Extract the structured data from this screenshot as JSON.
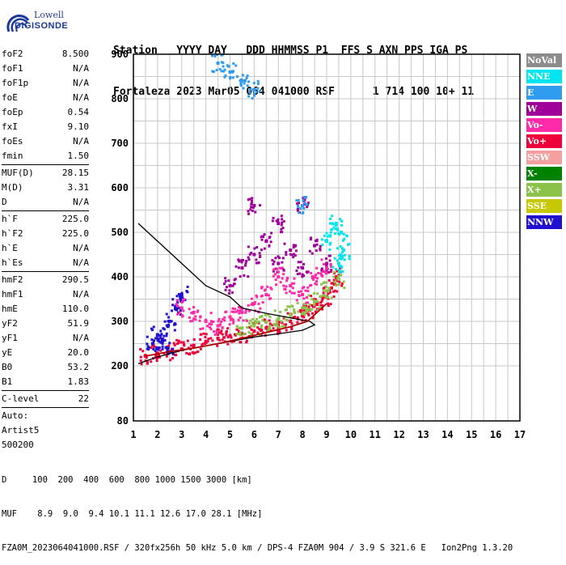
{
  "logo": {
    "line1": "Lowell",
    "line2": "DIGISONDE"
  },
  "header": {
    "line1": "Station   YYYY DAY   DDD HHMMSS P1  FFS S AXN PPS IGA PS",
    "line2": "Fortaleza 2023 Mar05 064 041000 RSF      1 714 100 10+ 11"
  },
  "params": {
    "group1": [
      [
        "foF2",
        "8.500"
      ],
      [
        "foF1",
        "N/A"
      ],
      [
        "foF1p",
        "N/A"
      ],
      [
        "foE",
        "N/A"
      ],
      [
        "foEp",
        "0.54"
      ],
      [
        "fxI",
        "9.10"
      ],
      [
        "foEs",
        "N/A"
      ],
      [
        "fmin",
        "1.50"
      ]
    ],
    "group2": [
      [
        "MUF(D)",
        "28.15"
      ],
      [
        "M(D)",
        "3.31"
      ],
      [
        "D",
        "N/A"
      ]
    ],
    "group3": [
      [
        "h`F",
        "225.0"
      ],
      [
        "h`F2",
        "225.0"
      ],
      [
        "h`E",
        "N/A"
      ],
      [
        "h`Es",
        "N/A"
      ]
    ],
    "group4": [
      [
        "hmF2",
        "290.5"
      ],
      [
        "hmF1",
        "N/A"
      ],
      [
        "hmE",
        "110.0"
      ],
      [
        "yF2",
        "51.9"
      ],
      [
        "yF1",
        "N/A"
      ],
      [
        "yE",
        "20.0"
      ],
      [
        "B0",
        "53.2"
      ],
      [
        "B1",
        "1.83"
      ]
    ],
    "group5": [
      [
        "C-level",
        "22"
      ]
    ],
    "auto": [
      "Auto:",
      "Artist5",
      "500200"
    ]
  },
  "legend": [
    {
      "label": "NoVal",
      "color": "#8c8c8c"
    },
    {
      "label": "NNE",
      "color": "#00e5ee"
    },
    {
      "label": "E",
      "color": "#2f9cf0"
    },
    {
      "label": "W",
      "color": "#a0009a"
    },
    {
      "label": "Vo-",
      "color": "#ff2aa8"
    },
    {
      "label": "Vo+",
      "color": "#f0003a"
    },
    {
      "label": "SSW",
      "color": "#f5a0a0"
    },
    {
      "label": "X-",
      "color": "#008200"
    },
    {
      "label": "X+",
      "color": "#8bc34a"
    },
    {
      "label": "SSE",
      "color": "#c8c800"
    },
    {
      "label": "NNW",
      "color": "#2010d0"
    }
  ],
  "footer": {
    "line1": "D     100  200  400  600  800 1000 1500 3000 [km]",
    "line2": "MUF    8.9  9.0  9.4 10.1 11.1 12.6 17.0 28.1 [MHz]",
    "line3": "FZA0M_2023064041000.RSF / 320fx256h 50 kHz 5.0 km / DPS-4 FZA0M 904 / 3.9 S 321.6 E   Ion2Png 1.3.20"
  },
  "chart_data": {
    "type": "scatter",
    "xlim": [
      1,
      17
    ],
    "ylim": [
      80,
      900
    ],
    "x_ticks": [
      1,
      2,
      3,
      4,
      5,
      6,
      7,
      8,
      9,
      10,
      11,
      12,
      13,
      14,
      15,
      16,
      17
    ],
    "y_ticks": [
      80,
      200,
      300,
      400,
      500,
      600,
      700,
      800,
      900
    ],
    "grid": true,
    "series": [
      {
        "name": "Vo+ trace",
        "color": "#f0003a",
        "points": [
          [
            1.5,
            222
          ],
          [
            2,
            228
          ],
          [
            2.5,
            232
          ],
          [
            3,
            238
          ],
          [
            3.5,
            246
          ],
          [
            4,
            255
          ],
          [
            4.5,
            262
          ],
          [
            5,
            268
          ],
          [
            5.5,
            272
          ],
          [
            6,
            278
          ],
          [
            6.5,
            285
          ],
          [
            7,
            292
          ],
          [
            7.5,
            300
          ],
          [
            8,
            312
          ],
          [
            8.3,
            325
          ],
          [
            8.6,
            338
          ],
          [
            9,
            355
          ],
          [
            9.2,
            375
          ],
          [
            9.4,
            400
          ]
        ]
      },
      {
        "name": "X+ trace",
        "color": "#8bc34a",
        "points": [
          [
            5.5,
            285
          ],
          [
            6,
            290
          ],
          [
            6.5,
            298
          ],
          [
            7,
            306
          ],
          [
            7.5,
            316
          ],
          [
            8,
            330
          ],
          [
            8.5,
            345
          ],
          [
            9,
            368
          ],
          [
            9.5,
            395
          ]
        ]
      },
      {
        "name": "W scatter",
        "color": "#a0009a",
        "points": [
          [
            5,
            380
          ],
          [
            5.5,
            420
          ],
          [
            6,
            450
          ],
          [
            6.5,
            480
          ],
          [
            7,
            430
          ],
          [
            7.5,
            460
          ],
          [
            8,
            420
          ],
          [
            8.5,
            470
          ],
          [
            9,
            430
          ],
          [
            7,
            520
          ],
          [
            8,
            560
          ],
          [
            6,
            560
          ]
        ]
      },
      {
        "name": "NNW scatter",
        "color": "#2010d0",
        "points": [
          [
            1.8,
            250
          ],
          [
            2,
            270
          ],
          [
            2.2,
            260
          ],
          [
            2.5,
            300
          ],
          [
            2.8,
            330
          ],
          [
            3,
            360
          ],
          [
            2.4,
            240
          ]
        ]
      },
      {
        "name": "Vo- scatter",
        "color": "#ff2aa8",
        "points": [
          [
            3,
            330
          ],
          [
            3.5,
            320
          ],
          [
            4,
            300
          ],
          [
            4.5,
            290
          ],
          [
            5,
            310
          ],
          [
            5.5,
            320
          ],
          [
            6,
            340
          ],
          [
            6.5,
            360
          ],
          [
            7,
            400
          ],
          [
            7.5,
            380
          ],
          [
            8,
            360
          ],
          [
            8.5,
            400
          ],
          [
            9,
            420
          ]
        ]
      },
      {
        "name": "NNE scatter",
        "color": "#00e5ee",
        "points": [
          [
            9,
            480
          ],
          [
            9.4,
            520
          ],
          [
            9.6,
            500
          ],
          [
            9.7,
            460
          ],
          [
            9.5,
            430
          ]
        ]
      },
      {
        "name": "E scatter",
        "color": "#2f9cf0",
        "points": [
          [
            5,
            860
          ],
          [
            5.5,
            840
          ],
          [
            6,
            820
          ],
          [
            4.5,
            880
          ],
          [
            8,
            560
          ]
        ]
      }
    ],
    "profile_black": [
      [
        1.2,
        205
      ],
      [
        2,
        220
      ],
      [
        3,
        235
      ],
      [
        4,
        245
      ],
      [
        5,
        255
      ],
      [
        6,
        265
      ],
      [
        7,
        272
      ],
      [
        8,
        280
      ],
      [
        8.5,
        292
      ],
      [
        8.3,
        300
      ],
      [
        7.5,
        308
      ],
      [
        6.5,
        318
      ],
      [
        5.5,
        330
      ],
      [
        5,
        355
      ],
      [
        4,
        380
      ],
      [
        3,
        430
      ],
      [
        2,
        480
      ],
      [
        1.2,
        520
      ]
    ],
    "profile_red": [
      [
        1.5,
        222
      ],
      [
        2.5,
        232
      ],
      [
        3.5,
        240
      ],
      [
        4.5,
        250
      ],
      [
        5.5,
        262
      ],
      [
        6.5,
        275
      ],
      [
        7.5,
        288
      ],
      [
        8.2,
        300
      ],
      [
        8.7,
        325
      ],
      [
        9,
        340
      ]
    ]
  }
}
